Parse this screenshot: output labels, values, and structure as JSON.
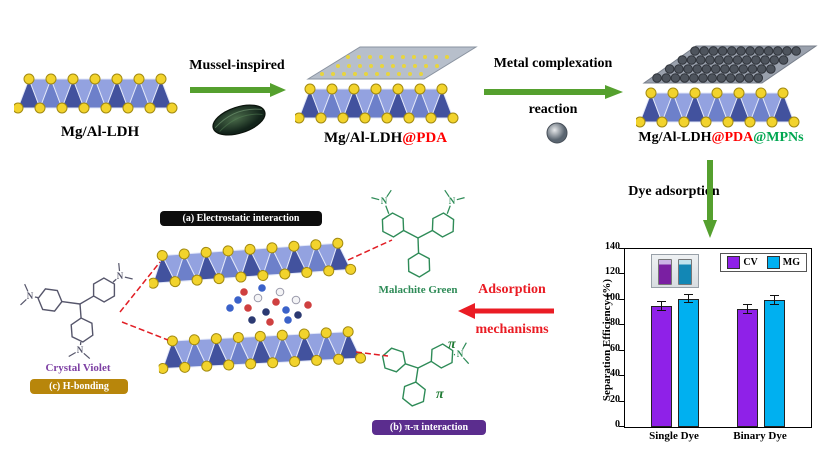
{
  "title_row": {
    "s1_label": "Mg/Al-LDH",
    "arrow1_label": "Mussel-inspired",
    "s2_label_base": "Mg/Al-LDH",
    "s2_label_pda": "@PDA",
    "arrow2_label_line1": "Metal complexation",
    "arrow2_label_line2": "reaction",
    "s3_label_base": "Mg/Al-LDH",
    "s3_label_pda": "@PDA",
    "s3_label_mpns": "@MPNs",
    "dye_adsorption": "Dye adsorption"
  },
  "mechanisms": {
    "badge_a": "(a) Electrostatic interaction",
    "badge_b": "(b) π-π interaction",
    "badge_c": "(c) H-bonding",
    "malachite_green": "Malachite Green",
    "crystal_violet": "Crystal Violet",
    "pi_symbol": "π",
    "nitrogen_symbol": "N",
    "arrow_line1": "Adsorption",
    "arrow_line2": "mechanisms"
  },
  "chart_data": {
    "type": "bar",
    "categories": [
      "Single Dye",
      "Binary Dye"
    ],
    "series": [
      {
        "name": "CV",
        "color": "#8f21e8",
        "values": [
          95,
          93
        ],
        "errors": [
          3,
          3
        ]
      },
      {
        "name": "MG",
        "color": "#00b0f0",
        "values": [
          101,
          100
        ],
        "errors": [
          3,
          3
        ]
      }
    ],
    "ylabel": "Separation Efficiency (%)",
    "ylim": [
      0,
      140
    ],
    "yticks": [
      0,
      20,
      40,
      60,
      80,
      100,
      120,
      140
    ],
    "legend_position": "top-right-inside",
    "grid": false
  },
  "colors": {
    "arrow_green": "#55a02e",
    "arrow_red": "#ea1c24",
    "label_red": "#ff0000",
    "label_green": "#00a650",
    "mg_label_green": "#2e8b57",
    "cv_label_purple": "#7d3fa3",
    "badge_a_bg": "#0d0d0d",
    "badge_b_bg": "#5b2d8e",
    "badge_c_bg": "#b8860b",
    "ldh_octahedra_blue": "#42529e",
    "hydroxide_yellow": "#f2d32c"
  }
}
